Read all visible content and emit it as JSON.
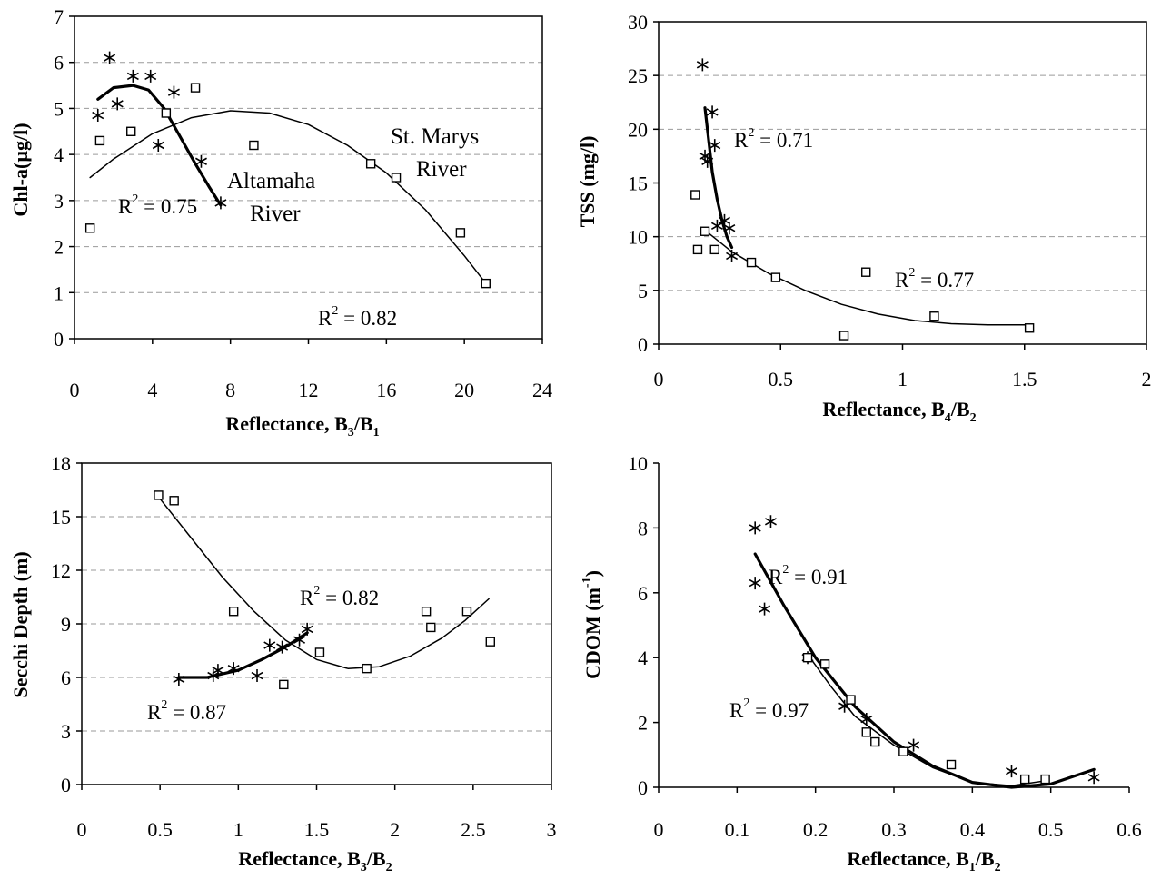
{
  "chart_data": [
    {
      "type": "scatter",
      "xlabel": "Reflectance, B3/B1",
      "xlabel_parts": {
        "main": "Reflectance, B",
        "sub1": "3",
        "mid": "/B",
        "sub2": "1"
      },
      "ylabel": "Chl-a(µg/l)",
      "xlim": [
        0,
        24
      ],
      "ylim": [
        0,
        7
      ],
      "xticks": [
        0,
        4,
        8,
        12,
        16,
        20,
        24
      ],
      "yticks": [
        0,
        1,
        2,
        3,
        4,
        5,
        6,
        7
      ],
      "grid": "horizontal dashed",
      "series": [
        {
          "marker": "asterisk",
          "points": [
            [
              1.2,
              4.85
            ],
            [
              1.8,
              6.1
            ],
            [
              2.2,
              5.1
            ],
            [
              3.0,
              5.7
            ],
            [
              3.9,
              5.7
            ],
            [
              4.3,
              4.2
            ],
            [
              5.1,
              5.35
            ],
            [
              6.5,
              3.85
            ],
            [
              7.5,
              2.95
            ]
          ],
          "fit": [
            [
              1.2,
              5.2
            ],
            [
              2.0,
              5.45
            ],
            [
              3.0,
              5.5
            ],
            [
              3.8,
              5.4
            ],
            [
              4.6,
              5.0
            ],
            [
              5.4,
              4.4
            ],
            [
              6.2,
              3.8
            ],
            [
              6.9,
              3.3
            ],
            [
              7.5,
              2.9
            ]
          ]
        },
        {
          "marker": "square",
          "points": [
            [
              0.8,
              2.4
            ],
            [
              1.3,
              4.3
            ],
            [
              2.9,
              4.5
            ],
            [
              4.7,
              4.9
            ],
            [
              6.2,
              5.45
            ],
            [
              9.2,
              4.2
            ],
            [
              15.2,
              3.8
            ],
            [
              16.5,
              3.5
            ],
            [
              19.8,
              2.3
            ],
            [
              21.1,
              1.2
            ]
          ],
          "fit": [
            [
              0.8,
              3.5
            ],
            [
              2,
              3.9
            ],
            [
              4,
              4.45
            ],
            [
              6,
              4.8
            ],
            [
              8,
              4.95
            ],
            [
              10,
              4.9
            ],
            [
              12,
              4.65
            ],
            [
              14,
              4.2
            ],
            [
              16,
              3.6
            ],
            [
              18,
              2.8
            ],
            [
              20,
              1.8
            ],
            [
              21.1,
              1.2
            ]
          ]
        }
      ],
      "annotations": {
        "r2_a": "R2 = 0.75",
        "r2_a_main": "R",
        "r2_a_exp": "2",
        "r2_a_val": " = 0.75",
        "r2_b": "R2 = 0.82",
        "r2_b_main": "R",
        "r2_b_exp": "2",
        "r2_b_val": " = 0.82",
        "label_altamaha_1": "Altamaha",
        "label_altamaha_2": "River",
        "label_stmarys_1": "St. Marys",
        "label_stmarys_2": "River"
      }
    },
    {
      "type": "scatter",
      "xlabel": "Reflectance, B4/B2",
      "xlabel_parts": {
        "main": "Reflectance, B",
        "sub1": "4",
        "mid": "/B",
        "sub2": "2"
      },
      "ylabel": "TSS (mg/l)",
      "xlim": [
        0,
        2
      ],
      "ylim": [
        0,
        30
      ],
      "xticks": [
        "0",
        "0.5",
        "1",
        "1.5",
        "2"
      ],
      "yticks": [
        0,
        5,
        10,
        15,
        20,
        25,
        30
      ],
      "grid": "horizontal dashed",
      "series": [
        {
          "marker": "asterisk",
          "points": [
            [
              0.18,
              26
            ],
            [
              0.22,
              21.6
            ],
            [
              0.23,
              18.5
            ],
            [
              0.19,
              17.5
            ],
            [
              0.2,
              17
            ],
            [
              0.24,
              11
            ],
            [
              0.27,
              11.5
            ],
            [
              0.29,
              10.8
            ],
            [
              0.3,
              8.2
            ]
          ],
          "fit": [
            [
              0.19,
              22
            ],
            [
              0.2,
              20
            ],
            [
              0.21,
              18
            ],
            [
              0.22,
              16
            ],
            [
              0.24,
              13.5
            ],
            [
              0.26,
              11.5
            ],
            [
              0.28,
              10
            ],
            [
              0.3,
              9
            ]
          ]
        },
        {
          "marker": "square",
          "points": [
            [
              0.15,
              13.9
            ],
            [
              0.16,
              8.8
            ],
            [
              0.19,
              10.5
            ],
            [
              0.23,
              8.8
            ],
            [
              0.38,
              7.6
            ],
            [
              0.48,
              6.2
            ],
            [
              0.76,
              0.8
            ],
            [
              0.85,
              6.7
            ],
            [
              1.13,
              2.6
            ],
            [
              1.52,
              1.5
            ]
          ],
          "fit": [
            [
              0.19,
              10.6
            ],
            [
              0.3,
              8.6
            ],
            [
              0.45,
              6.6
            ],
            [
              0.6,
              5.0
            ],
            [
              0.75,
              3.7
            ],
            [
              0.9,
              2.8
            ],
            [
              1.05,
              2.2
            ],
            [
              1.2,
              1.9
            ],
            [
              1.35,
              1.8
            ],
            [
              1.52,
              1.8
            ]
          ]
        }
      ],
      "annotations": {
        "r2_a": "R2 = 0.71",
        "r2_a_main": "R",
        "r2_a_exp": "2",
        "r2_a_val": " = 0.71",
        "r2_b": "R2 = 0.77",
        "r2_b_main": "R",
        "r2_b_exp": "2",
        "r2_b_val": " = 0.77"
      }
    },
    {
      "type": "scatter",
      "xlabel": "Reflectance, B3/B2",
      "xlabel_parts": {
        "main": "Reflectance, B",
        "sub1": "3",
        "mid": "/B",
        "sub2": "2"
      },
      "ylabel": "Secchi Depth (m)",
      "xlim": [
        0,
        3
      ],
      "ylim": [
        0,
        18
      ],
      "xticks": [
        "0",
        "0.5",
        "1",
        "1.5",
        "2",
        "2.5",
        "3"
      ],
      "yticks": [
        0,
        3,
        6,
        9,
        12,
        15,
        18
      ],
      "grid": "horizontal dashed",
      "series": [
        {
          "marker": "asterisk",
          "points": [
            [
              0.62,
              5.9
            ],
            [
              0.84,
              6.1
            ],
            [
              0.87,
              6.4
            ],
            [
              0.97,
              6.5
            ],
            [
              1.12,
              6.1
            ],
            [
              1.2,
              7.8
            ],
            [
              1.28,
              7.7
            ],
            [
              1.39,
              8.1
            ],
            [
              1.44,
              8.7
            ]
          ],
          "fit": [
            [
              0.62,
              6.0
            ],
            [
              0.8,
              6.0
            ],
            [
              1.0,
              6.4
            ],
            [
              1.15,
              7.0
            ],
            [
              1.3,
              7.7
            ],
            [
              1.44,
              8.5
            ]
          ]
        },
        {
          "marker": "square",
          "points": [
            [
              0.49,
              16.2
            ],
            [
              0.59,
              15.9
            ],
            [
              0.97,
              9.7
            ],
            [
              1.29,
              5.6
            ],
            [
              1.52,
              7.4
            ],
            [
              1.82,
              6.5
            ],
            [
              2.2,
              9.7
            ],
            [
              2.23,
              8.8
            ],
            [
              2.46,
              9.7
            ],
            [
              2.61,
              8.0
            ]
          ],
          "fit": [
            [
              0.5,
              16.0
            ],
            [
              0.7,
              13.8
            ],
            [
              0.9,
              11.6
            ],
            [
              1.1,
              9.7
            ],
            [
              1.3,
              8.1
            ],
            [
              1.5,
              7.0
            ],
            [
              1.7,
              6.5
            ],
            [
              1.9,
              6.6
            ],
            [
              2.1,
              7.2
            ],
            [
              2.3,
              8.2
            ],
            [
              2.45,
              9.2
            ],
            [
              2.6,
              10.4
            ]
          ]
        }
      ],
      "annotations": {
        "r2_a": "R2 = 0.87",
        "r2_a_main": "R",
        "r2_a_exp": "2",
        "r2_a_val": " = 0.87",
        "r2_b": "R2 = 0.82",
        "r2_b_main": "R",
        "r2_b_exp": "2",
        "r2_b_val": " = 0.82"
      }
    },
    {
      "type": "scatter",
      "xlabel": "Reflectance, B1/B2",
      "xlabel_parts": {
        "main": "Reflectance,  B",
        "sub1": "1",
        "mid": "/B",
        "sub2": "2"
      },
      "ylabel": "CDOM (m-1)",
      "ylabel_parts": {
        "main": "CDOM (m",
        "exp": "-1",
        "end": ")"
      },
      "xlim": [
        0,
        0.6
      ],
      "ylim": [
        0,
        10
      ],
      "xticks": [
        "0",
        "0.1",
        "0.2",
        "0.3",
        "0.4",
        "0.5",
        "0.6"
      ],
      "yticks": [
        0,
        2,
        4,
        6,
        8,
        10
      ],
      "grid": "none",
      "series": [
        {
          "marker": "asterisk",
          "points": [
            [
              0.123,
              8.0
            ],
            [
              0.143,
              8.2
            ],
            [
              0.123,
              6.3
            ],
            [
              0.135,
              5.5
            ],
            [
              0.19,
              4.0
            ],
            [
              0.237,
              2.5
            ],
            [
              0.265,
              2.1
            ],
            [
              0.325,
              1.3
            ],
            [
              0.45,
              0.5
            ],
            [
              0.555,
              0.3
            ]
          ],
          "fit": [
            [
              0.123,
              7.2
            ],
            [
              0.16,
              5.6
            ],
            [
              0.2,
              4.0
            ],
            [
              0.25,
              2.5
            ],
            [
              0.3,
              1.4
            ],
            [
              0.35,
              0.65
            ],
            [
              0.4,
              0.15
            ],
            [
              0.45,
              0.0
            ],
            [
              0.5,
              0.1
            ],
            [
              0.555,
              0.55
            ]
          ]
        },
        {
          "marker": "square",
          "points": [
            [
              0.19,
              4.0
            ],
            [
              0.212,
              3.8
            ],
            [
              0.245,
              2.7
            ],
            [
              0.265,
              1.7
            ],
            [
              0.276,
              1.4
            ],
            [
              0.312,
              1.1
            ],
            [
              0.373,
              0.7
            ],
            [
              0.467,
              0.25
            ],
            [
              0.493,
              0.25
            ]
          ],
          "fit": [
            [
              0.19,
              4.1
            ],
            [
              0.22,
              3.1
            ],
            [
              0.25,
              2.2
            ],
            [
              0.3,
              1.3
            ],
            [
              0.35,
              0.6
            ],
            [
              0.4,
              0.15
            ],
            [
              0.45,
              0.05
            ],
            [
              0.493,
              0.2
            ]
          ]
        }
      ],
      "annotations": {
        "r2_a": "R2 = 0.91",
        "r2_a_main": "R",
        "r2_a_exp": "2",
        "r2_a_val": " = 0.91",
        "r2_b": "R2 = 0.97",
        "r2_b_main": "R",
        "r2_b_exp": "2",
        "r2_b_val": " = 0.97"
      }
    }
  ]
}
